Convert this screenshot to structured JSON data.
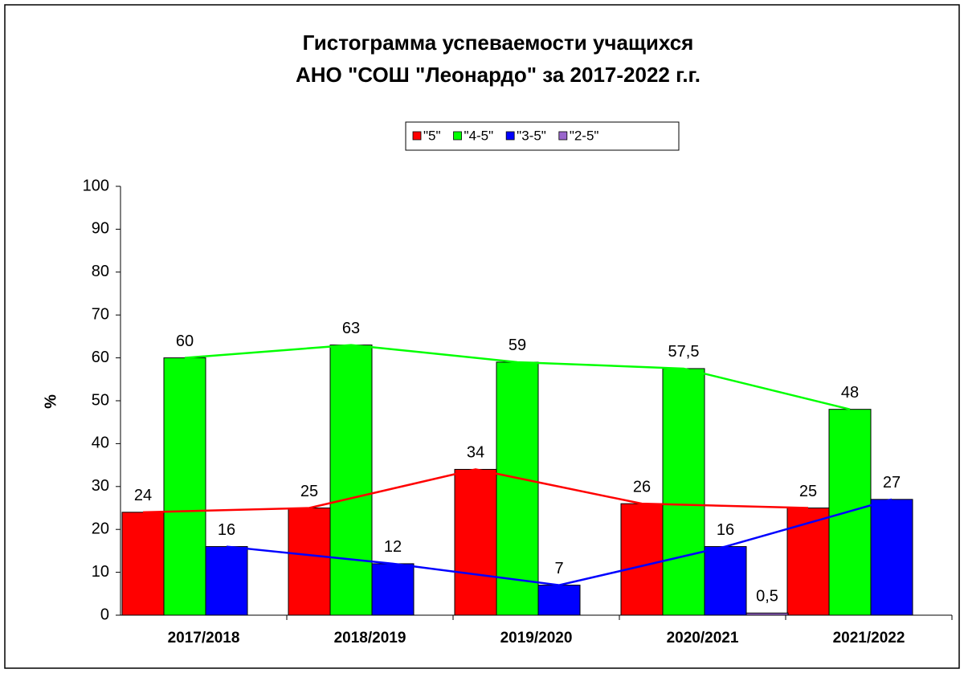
{
  "chart_data": {
    "type": "bar",
    "title": [
      "Гистограмма успеваемости учащихся",
      "АНО \"СОШ \"Леонардо\" за 2017-2022 г.г."
    ],
    "y_label": "%",
    "categories": [
      "2017/2018",
      "2018/2019",
      "2019/2020",
      "2020/2021",
      "2021/2022"
    ],
    "series": [
      {
        "name": "\"5\"",
        "color": "#ff0000",
        "line": true,
        "values": [
          24,
          25,
          34,
          26,
          25
        ]
      },
      {
        "name": "\"4-5\"",
        "color": "#00ff00",
        "line": true,
        "values": [
          60,
          63,
          59,
          57.5,
          48
        ],
        "value_labels": [
          "60",
          "63",
          "59",
          "57,5",
          "48"
        ]
      },
      {
        "name": "\"3-5\"",
        "color": "#0000ff",
        "line": true,
        "values": [
          16,
          12,
          7,
          16,
          27
        ]
      },
      {
        "name": "\"2-5\"",
        "color": "#9966cc",
        "line": false,
        "values": [
          null,
          null,
          null,
          0.5,
          null
        ],
        "value_labels": [
          null,
          null,
          null,
          "0,5",
          null
        ]
      }
    ],
    "ylim": [
      0,
      100
    ],
    "yticks": [
      0,
      10,
      20,
      30,
      40,
      50,
      60,
      70,
      80,
      90,
      100
    ],
    "grid": false
  }
}
